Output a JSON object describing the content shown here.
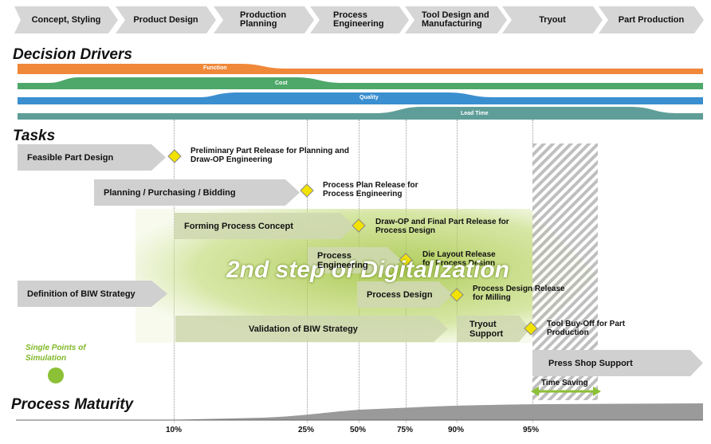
{
  "phases": [
    "Concept, Styling",
    "Product Design",
    "Production Planning",
    "Process Engineering",
    "Tool Design and Manufacturing",
    "Tryout",
    "Part Production"
  ],
  "sections": {
    "decision_drivers": "Decision Drivers",
    "tasks": "Tasks",
    "process_maturity": "Process Maturity"
  },
  "drivers": [
    {
      "label": "Function",
      "color": "#f0883a"
    },
    {
      "label": "Cost",
      "color": "#4ea86a"
    },
    {
      "label": "Quality",
      "color": "#3a8fd0"
    },
    {
      "label": "Lead Time",
      "color": "#5f9e98"
    }
  ],
  "tasks": {
    "feasible": "Feasible Part Design",
    "planning": "Planning  / Purchasing  / Bidding",
    "forming": "Forming Process Concept",
    "process_eng": "Process Engineering",
    "process_design": "Process Design",
    "biw_def": "Definition of BIW Strategy",
    "validation": "Validation  of BIW Strategy",
    "tryout_support": "Tryout Support",
    "press_shop": "Press Shop Support"
  },
  "milestones": {
    "m1": "Preliminary Part Release for Planning and Draw-OP Engineering",
    "m2": "Process Plan Release for Process Engineering",
    "m3": "Draw-OP and Final Part Release for Process Design",
    "m4": "Die Layout Release for Process Design",
    "m5": "Process Design Release for Milling",
    "m6": "Tool Buy-Off for Part Production"
  },
  "overlay_title": "2nd step of Digitalization",
  "single_points": "Single Points of Simulation",
  "time_saving": "Time Saving",
  "maturity_ticks": [
    "10%",
    "25%",
    "50%",
    "75%",
    "90%",
    "95%"
  ],
  "colors": {
    "highlight": "#a8c832",
    "arrow_grey": "#d0d0d0"
  }
}
